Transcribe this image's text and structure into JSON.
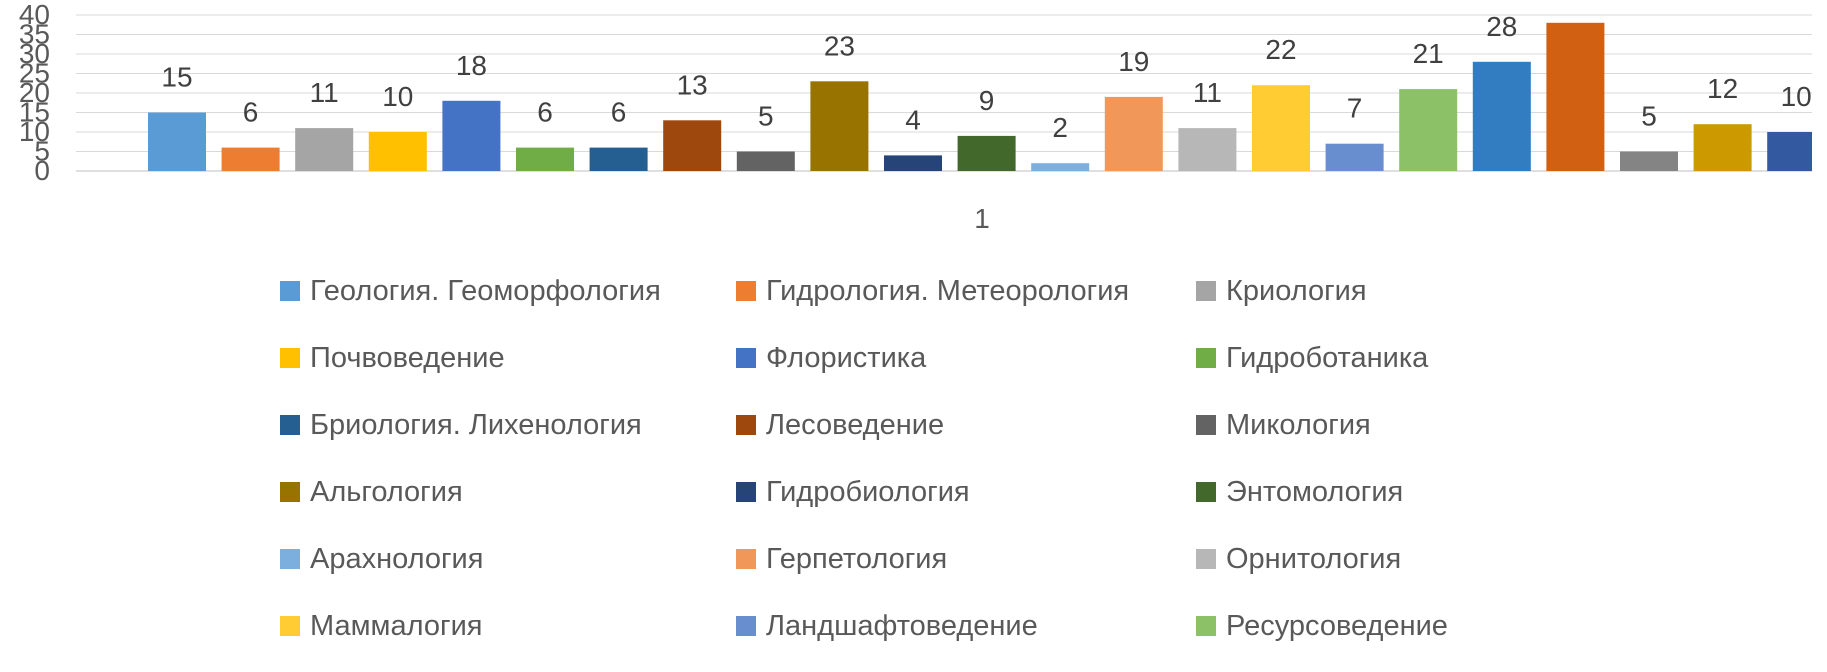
{
  "chart_data": {
    "type": "bar",
    "categories": [
      "1"
    ],
    "ylim": [
      0,
      40
    ],
    "yticks": [
      0,
      5,
      10,
      15,
      20,
      25,
      30,
      35,
      40
    ],
    "grid": true,
    "legend_position": "bottom",
    "series": [
      {
        "name": "Геология. Геоморфология",
        "value": 15,
        "color": "#5B9BD5",
        "label": "15"
      },
      {
        "name": "Гидрология. Метеорология",
        "value": 6,
        "color": "#ED7D31",
        "label": "6"
      },
      {
        "name": "Криология",
        "value": 11,
        "color": "#A5A5A5",
        "label": "11"
      },
      {
        "name": "Почвоведение",
        "value": 10,
        "color": "#FFC000",
        "label": "10"
      },
      {
        "name": "Флористика",
        "value": 18,
        "color": "#4472C4",
        "label": "18"
      },
      {
        "name": "Гидроботаника",
        "value": 6,
        "color": "#70AD47",
        "label": "6"
      },
      {
        "name": "Бриология. Лихенология",
        "value": 6,
        "color": "#255E91",
        "label": "6"
      },
      {
        "name": "Лесоведение",
        "value": 13,
        "color": "#9E480E",
        "label": "13"
      },
      {
        "name": "Микология",
        "value": 5,
        "color": "#636363",
        "label": "5"
      },
      {
        "name": "Альгология",
        "value": 23,
        "color": "#997300",
        "label": "23"
      },
      {
        "name": "Гидробиология",
        "value": 4,
        "color": "#264478",
        "label": "4"
      },
      {
        "name": "Энтомология",
        "value": 9,
        "color": "#43682B",
        "label": "9"
      },
      {
        "name": "Арахнология",
        "value": 2,
        "color": "#7CAFDD",
        "label": "2"
      },
      {
        "name": "Герпетология",
        "value": 19,
        "color": "#F1975A",
        "label": "19"
      },
      {
        "name": "Орнитология",
        "value": 11,
        "color": "#B7B7B7",
        "label": "11"
      },
      {
        "name": "Маммалогия",
        "value": 22,
        "color": "#FFCD33",
        "label": "22"
      },
      {
        "name": "Ландшафтоведение",
        "value": 7,
        "color": "#698ED0",
        "label": "7"
      },
      {
        "name": "Ресурсоведение",
        "value": 21,
        "color": "#8CC168",
        "label": "21"
      },
      {
        "name": "",
        "value": 28,
        "color": "#327DC2",
        "label": "28"
      },
      {
        "name": "",
        "value": 38,
        "color": "#D26012",
        "label": ""
      },
      {
        "name": "",
        "value": 5,
        "color": "#848484",
        "label": "5"
      },
      {
        "name": "",
        "value": 12,
        "color": "#CC9A00",
        "label": "12"
      },
      {
        "name": "",
        "value": 10,
        "color": "#335AA1",
        "label": "10"
      }
    ]
  }
}
